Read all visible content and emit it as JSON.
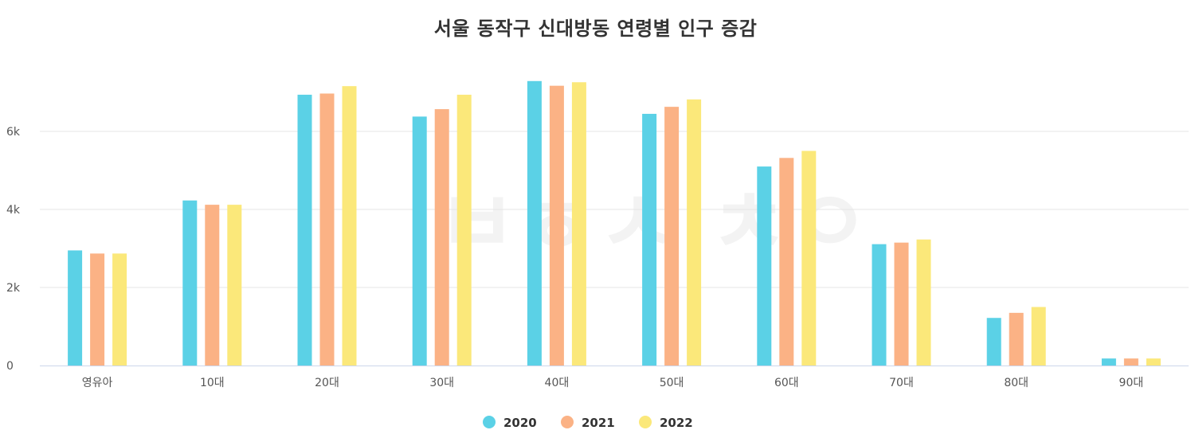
{
  "chart_data": {
    "type": "bar",
    "title": "서울 동작구 신대방동 연령별 인구 증감",
    "xlabel": "",
    "ylabel": "",
    "categories": [
      "영유아",
      "10대",
      "20대",
      "30대",
      "40대",
      "50대",
      "60대",
      "70대",
      "80대",
      "90대"
    ],
    "series": [
      {
        "name": "2020",
        "color": "#5bd1e6",
        "values": [
          2950,
          4230,
          6940,
          6380,
          7290,
          6450,
          5100,
          3110,
          1220,
          180
        ]
      },
      {
        "name": "2021",
        "color": "#fbb285",
        "values": [
          2870,
          4120,
          6970,
          6570,
          7170,
          6630,
          5320,
          3150,
          1350,
          180
        ]
      },
      {
        "name": "2022",
        "color": "#fbe87a",
        "values": [
          2870,
          4120,
          7160,
          6940,
          7260,
          6820,
          5500,
          3230,
          1500,
          180
        ]
      }
    ],
    "yticks": [
      0,
      2000,
      4000,
      6000
    ],
    "ytick_labels": [
      "0",
      "2k",
      "4k",
      "6k"
    ],
    "ylim": [
      0,
      8000
    ],
    "grid": true,
    "legend_position": "bottom-center"
  }
}
